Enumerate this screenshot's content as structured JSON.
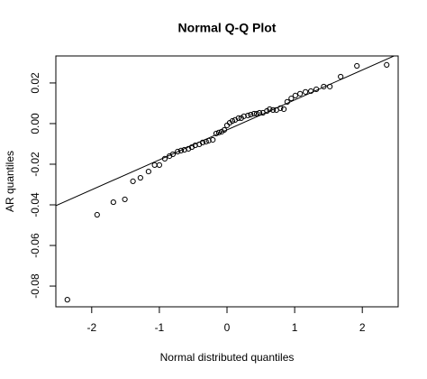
{
  "chart_data": {
    "type": "scatter",
    "title": "Normal Q-Q Plot",
    "x_label": "Normal distributed quantiles",
    "y_label": "AR quantiles",
    "x": [
      -2.36,
      -1.92,
      -1.68,
      -1.51,
      -1.39,
      -1.28,
      -1.16,
      -1.07,
      -1.0,
      -0.92,
      -0.85,
      -0.8,
      -0.73,
      -0.68,
      -0.63,
      -0.57,
      -0.52,
      -0.47,
      -0.41,
      -0.36,
      -0.31,
      -0.27,
      -0.21,
      -0.16,
      -0.12,
      -0.08,
      -0.04,
      0.0,
      0.04,
      0.08,
      0.12,
      0.17,
      0.21,
      0.25,
      0.31,
      0.35,
      0.4,
      0.44,
      0.48,
      0.53,
      0.59,
      0.63,
      0.68,
      0.73,
      0.79,
      0.84,
      0.89,
      0.95,
      1.01,
      1.08,
      1.16,
      1.24,
      1.32,
      1.43,
      1.52,
      1.68,
      1.92,
      2.36
    ],
    "y": [
      -0.0867,
      -0.0449,
      -0.0387,
      -0.0373,
      -0.0284,
      -0.0267,
      -0.0236,
      -0.0204,
      -0.0204,
      -0.0173,
      -0.016,
      -0.0151,
      -0.0138,
      -0.0133,
      -0.0129,
      -0.0124,
      -0.0116,
      -0.0107,
      -0.0102,
      -0.0093,
      -0.0089,
      -0.0084,
      -0.008,
      -0.0049,
      -0.0044,
      -0.004,
      -0.0031,
      -0.0009,
      0.0004,
      0.0013,
      0.0018,
      0.0027,
      0.0027,
      0.0036,
      0.004,
      0.0044,
      0.0049,
      0.0049,
      0.0053,
      0.0053,
      0.0062,
      0.0071,
      0.0067,
      0.0067,
      0.0076,
      0.0071,
      0.0107,
      0.0124,
      0.0138,
      0.0147,
      0.0156,
      0.016,
      0.0169,
      0.0182,
      0.0182,
      0.0231,
      0.0284,
      0.0289
    ],
    "color": "#000000",
    "reference_line": {
      "x": [
        -2.53,
        2.53
      ],
      "y": [
        -0.0404,
        0.0342
      ]
    },
    "xlim": [
      -2.53,
      2.53
    ],
    "ylim": [
      -0.0902,
      0.0333
    ],
    "xticks": [
      -2,
      -1,
      0,
      1,
      2
    ],
    "yticks": [
      -0.08,
      -0.06,
      -0.04,
      -0.02,
      {
        "value": 0,
        "label": "0.00"
      },
      0.02
    ]
  }
}
